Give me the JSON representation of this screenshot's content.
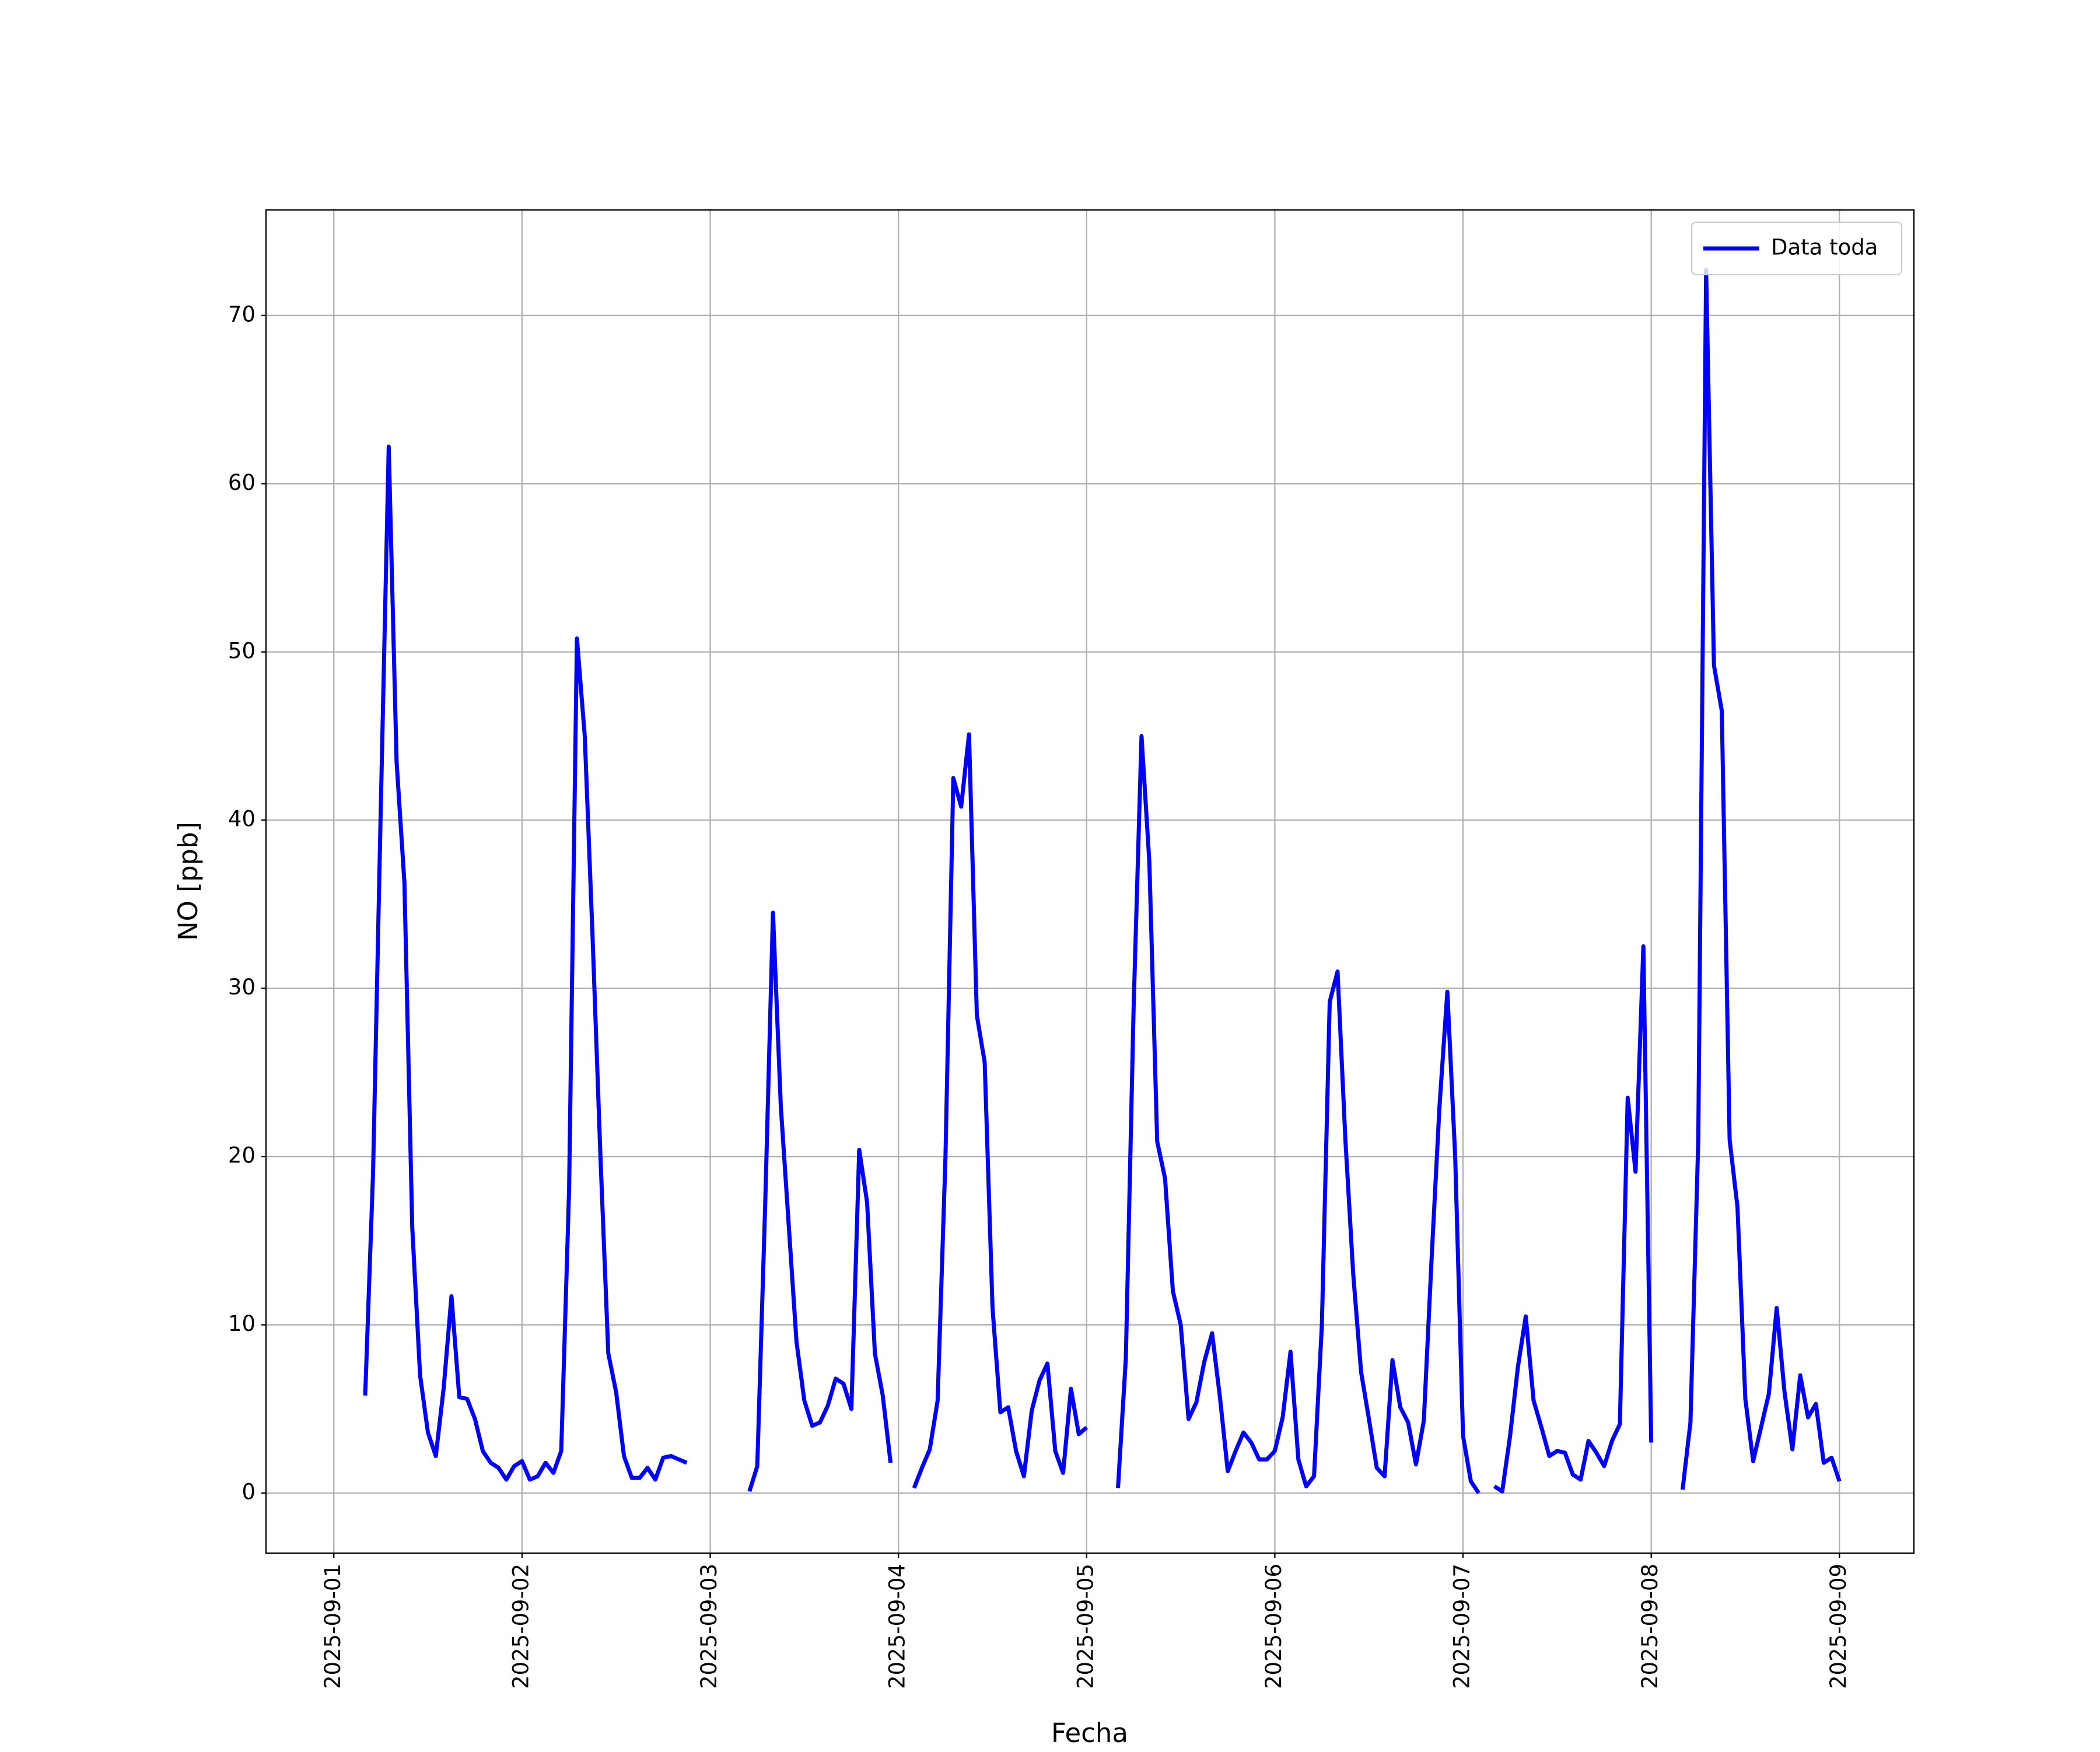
{
  "chart_data": {
    "type": "line",
    "xlabel": "Fecha",
    "ylabel": "NO [ppb]",
    "xlim": [
      "2025-08-31 15:21",
      "2025-09-09 09:30"
    ],
    "xticks": [
      "2025-09-01",
      "2025-09-02",
      "2025-09-03",
      "2025-09-04",
      "2025-09-05",
      "2025-09-06",
      "2025-09-07",
      "2025-09-08",
      "2025-09-09"
    ],
    "ylim": [
      -3.57,
      76.27
    ],
    "yticks": [
      0,
      10,
      20,
      30,
      40,
      50,
      60,
      70
    ],
    "grid": true,
    "legend": "upper right",
    "x": [
      "2025-09-01 04:00",
      "2025-09-01 05:00",
      "2025-09-01 06:00",
      "2025-09-01 07:00",
      "2025-09-01 08:00",
      "2025-09-01 09:00",
      "2025-09-01 10:00",
      "2025-09-01 11:00",
      "2025-09-01 12:00",
      "2025-09-01 13:00",
      "2025-09-01 14:00",
      "2025-09-01 15:00",
      "2025-09-01 16:00",
      "2025-09-01 17:00",
      "2025-09-01 18:00",
      "2025-09-01 19:00",
      "2025-09-01 20:00",
      "2025-09-01 21:00",
      "2025-09-01 22:00",
      "2025-09-01 23:00",
      "2025-09-02 00:00",
      "2025-09-02 01:00",
      "2025-09-02 02:00",
      "2025-09-02 03:00",
      "2025-09-02 04:00",
      "2025-09-02 05:00",
      "2025-09-02 06:00",
      "2025-09-02 07:00",
      "2025-09-02 08:00",
      "2025-09-02 09:00",
      "2025-09-02 10:00",
      "2025-09-02 11:00",
      "2025-09-02 12:00",
      "2025-09-02 13:00",
      "2025-09-02 14:00",
      "2025-09-02 15:00",
      "2025-09-02 16:00",
      "2025-09-02 17:00",
      "2025-09-02 18:00",
      "2025-09-02 19:00",
      "2025-09-02 20:00",
      "2025-09-02 21:00",
      "2025-09-02 22:00",
      "2025-09-02 23:00",
      "2025-09-03 00:00",
      "2025-09-03 01:00",
      "2025-09-03 02:00",
      "2025-09-03 03:00",
      "2025-09-03 04:00",
      "2025-09-03 05:00",
      "2025-09-03 06:00",
      "2025-09-03 07:00",
      "2025-09-03 08:00",
      "2025-09-03 09:00",
      "2025-09-03 10:00",
      "2025-09-03 11:00",
      "2025-09-03 12:00",
      "2025-09-03 13:00",
      "2025-09-03 14:00",
      "2025-09-03 15:00",
      "2025-09-03 16:00",
      "2025-09-03 17:00",
      "2025-09-03 18:00",
      "2025-09-03 19:00",
      "2025-09-03 20:00",
      "2025-09-03 21:00",
      "2025-09-03 22:00",
      "2025-09-03 23:00",
      "2025-09-04 00:00",
      "2025-09-04 01:00",
      "2025-09-04 02:00",
      "2025-09-04 03:00",
      "2025-09-04 04:00",
      "2025-09-04 05:00",
      "2025-09-04 06:00",
      "2025-09-04 07:00",
      "2025-09-04 08:00",
      "2025-09-04 09:00",
      "2025-09-04 10:00",
      "2025-09-04 11:00",
      "2025-09-04 12:00",
      "2025-09-04 13:00",
      "2025-09-04 14:00",
      "2025-09-04 15:00",
      "2025-09-04 16:00",
      "2025-09-04 17:00",
      "2025-09-04 18:00",
      "2025-09-04 19:00",
      "2025-09-04 20:00",
      "2025-09-04 21:00",
      "2025-09-04 22:00",
      "2025-09-04 23:00",
      "2025-09-05 00:00",
      "2025-09-05 01:00",
      "2025-09-05 02:00",
      "2025-09-05 03:00",
      "2025-09-05 04:00",
      "2025-09-05 05:00",
      "2025-09-05 06:00",
      "2025-09-05 07:00",
      "2025-09-05 08:00",
      "2025-09-05 09:00",
      "2025-09-05 10:00",
      "2025-09-05 11:00",
      "2025-09-05 12:00",
      "2025-09-05 13:00",
      "2025-09-05 14:00",
      "2025-09-05 15:00",
      "2025-09-05 16:00",
      "2025-09-05 17:00",
      "2025-09-05 18:00",
      "2025-09-05 19:00",
      "2025-09-05 20:00",
      "2025-09-05 21:00",
      "2025-09-05 22:00",
      "2025-09-05 23:00",
      "2025-09-06 00:00",
      "2025-09-06 01:00",
      "2025-09-06 02:00",
      "2025-09-06 03:00",
      "2025-09-06 04:00",
      "2025-09-06 05:00",
      "2025-09-06 06:00",
      "2025-09-06 07:00",
      "2025-09-06 08:00",
      "2025-09-06 09:00",
      "2025-09-06 10:00",
      "2025-09-06 11:00",
      "2025-09-06 12:00",
      "2025-09-06 13:00",
      "2025-09-06 14:00",
      "2025-09-06 15:00",
      "2025-09-06 16:00",
      "2025-09-06 17:00",
      "2025-09-06 18:00",
      "2025-09-06 19:00",
      "2025-09-06 20:00",
      "2025-09-06 21:00",
      "2025-09-06 22:00",
      "2025-09-06 23:00",
      "2025-09-07 00:00",
      "2025-09-07 01:00",
      "2025-09-07 02:00",
      "2025-09-07 03:00",
      "2025-09-07 04:00",
      "2025-09-07 05:00",
      "2025-09-07 06:00",
      "2025-09-07 07:00",
      "2025-09-07 08:00",
      "2025-09-07 09:00",
      "2025-09-07 10:00",
      "2025-09-07 11:00",
      "2025-09-07 12:00",
      "2025-09-07 13:00",
      "2025-09-07 14:00",
      "2025-09-07 15:00",
      "2025-09-07 16:00",
      "2025-09-07 17:00",
      "2025-09-07 18:00",
      "2025-09-07 19:00",
      "2025-09-07 20:00",
      "2025-09-07 21:00",
      "2025-09-07 22:00",
      "2025-09-07 23:00",
      "2025-09-08 00:00",
      "2025-09-08 01:00",
      "2025-09-08 02:00",
      "2025-09-08 03:00",
      "2025-09-08 04:00",
      "2025-09-08 05:00",
      "2025-09-08 06:00",
      "2025-09-08 07:00",
      "2025-09-08 08:00",
      "2025-09-08 09:00",
      "2025-09-08 10:00",
      "2025-09-08 11:00",
      "2025-09-08 12:00",
      "2025-09-08 13:00",
      "2025-09-08 14:00",
      "2025-09-08 15:00",
      "2025-09-08 16:00",
      "2025-09-08 17:00",
      "2025-09-08 18:00",
      "2025-09-08 19:00",
      "2025-09-08 20:00",
      "2025-09-08 21:00",
      "2025-09-08 22:00",
      "2025-09-08 23:00",
      "2025-09-09 00:00"
    ],
    "series": [
      {
        "name": "Data toda",
        "color": "#0000ff",
        "values": [
          5.8,
          19,
          41,
          62.2,
          43.5,
          36.3,
          15.8,
          7,
          3.6,
          2.2,
          6.2,
          11.7,
          5.7,
          5.6,
          4.4,
          2.5,
          1.8,
          1.5,
          0.8,
          1.6,
          1.9,
          0.8,
          1.0,
          1.8,
          1.2,
          2.5,
          18,
          50.8,
          45,
          33,
          20,
          8.3,
          6,
          2.2,
          0.9,
          0.9,
          1.5,
          0.8,
          2.1,
          2.2,
          2.0,
          1.8,
          null,
          null,
          null,
          null,
          null,
          null,
          null,
          0.1,
          1.6,
          17,
          34.5,
          23,
          16,
          9,
          5.5,
          4.0,
          4.2,
          5.2,
          6.8,
          6.5,
          5.0,
          20.4,
          17.3,
          8.3,
          5.8,
          1.8,
          null,
          null,
          0.3,
          1.5,
          2.6,
          5.5,
          20,
          42.5,
          40.8,
          45.1,
          28.4,
          25.6,
          11,
          4.8,
          5.1,
          2.5,
          1.0,
          4.9,
          6.7,
          7.7,
          2.5,
          1.2,
          6.2,
          3.5,
          3.9,
          null,
          null,
          null,
          0.3,
          8,
          29,
          45,
          37.5,
          20.9,
          18.7,
          12,
          10,
          4.4,
          5.4,
          7.8,
          9.5,
          5.7,
          1.3,
          2.5,
          3.6,
          3.0,
          2.0,
          2.0,
          2.5,
          4.5,
          8.4,
          2.0,
          0.4,
          1.0,
          10,
          29.2,
          31,
          21,
          13,
          7.2,
          4.4,
          1.5,
          1.0,
          7.9,
          5.1,
          4.2,
          1.7,
          4.3,
          14,
          23,
          29.8,
          20,
          3.4,
          0.7,
          0,
          null,
          0.4,
          0.1,
          3.4,
          7.5,
          10.5,
          5.5,
          3.9,
          2.2,
          2.5,
          2.4,
          1.1,
          0.8,
          3.1,
          2.4,
          1.6,
          3.1,
          4.1,
          23.5,
          19.1,
          32.5,
          3.0,
          null,
          null,
          null,
          0.2,
          4.2,
          21,
          72.7,
          49.2,
          46.5,
          21,
          17,
          5.6,
          1.9,
          3.9,
          5.9,
          11,
          6,
          2.6,
          7,
          4.5,
          5.3,
          1.8,
          2.1,
          0.7
        ]
      }
    ]
  }
}
